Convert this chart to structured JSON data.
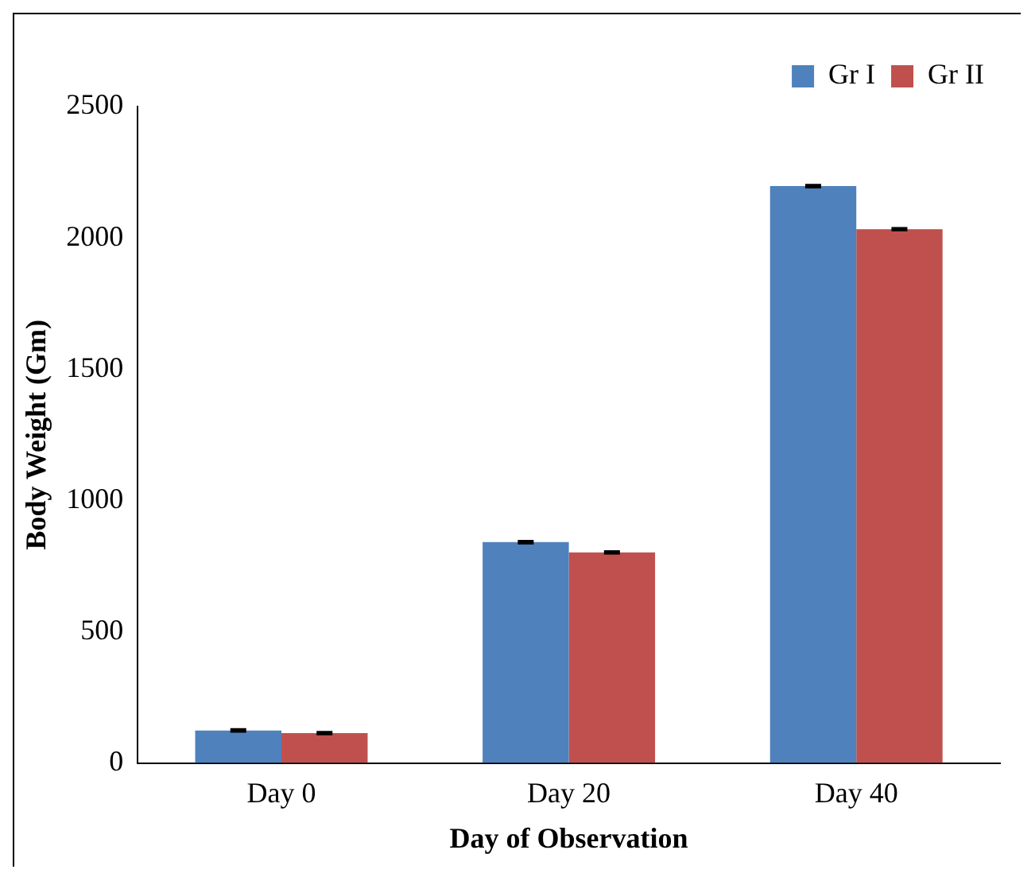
{
  "chart_data": {
    "type": "bar",
    "xlabel": "Day of Observation",
    "ylabel": "Body Weight (Gm)",
    "categories": [
      "Day 0",
      "Day 20",
      "Day 40"
    ],
    "series": [
      {
        "name": "Gr I",
        "color": "#4f81bd",
        "values": [
          124,
          841,
          2197
        ],
        "errors": [
          4,
          4,
          4
        ]
      },
      {
        "name": "Gr II",
        "color": "#c0504d",
        "values": [
          114,
          802,
          2033
        ],
        "errors": [
          4,
          4,
          4
        ]
      }
    ],
    "ylim": [
      0,
      2500
    ],
    "yticks": [
      0,
      500,
      1000,
      1500,
      2000,
      2500
    ],
    "grid": false,
    "legend": "top right"
  }
}
